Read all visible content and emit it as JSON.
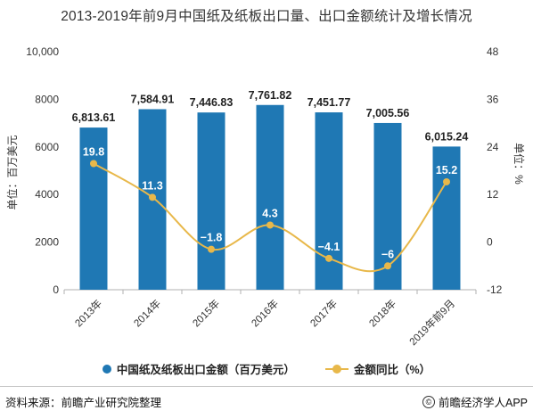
{
  "title": "2013-2019年前9月中国纸及纸板出口量、出口金额统计及增长情况",
  "chart_data": {
    "type": "bar",
    "categories": [
      "2013年",
      "2014年",
      "2015年",
      "2016年",
      "2017年",
      "2018年",
      "2019年前9月"
    ],
    "series": [
      {
        "name": "中国纸及纸板出口金额（百万美元）",
        "type": "bar",
        "axis": "left",
        "values": [
          6813.61,
          7584.91,
          7446.83,
          7761.82,
          7451.77,
          7005.56,
          6015.24
        ],
        "labels": [
          "6,813.61",
          "7,584.91",
          "7,446.83",
          "7,761.82",
          "7,451.77",
          "7,005.56",
          "6,015.24"
        ]
      },
      {
        "name": "金额同比（%）",
        "type": "line",
        "axis": "right",
        "values": [
          19.8,
          11.3,
          -1.8,
          4.3,
          -4.1,
          -6,
          15.2
        ],
        "labels": [
          "19.8",
          "11.3",
          "−1.8",
          "4.3",
          "−4.1",
          "−6",
          "15.2"
        ]
      }
    ],
    "y_left": {
      "label": "单位：百万美元",
      "range": [
        0,
        10000
      ],
      "ticks": [
        0,
        2000,
        4000,
        6000,
        8000,
        10000
      ],
      "tick_labels": [
        "0",
        "2000",
        "4000",
        "6000",
        "8000",
        "10,000"
      ]
    },
    "y_right": {
      "label": "单位：%",
      "range": [
        -12,
        48
      ],
      "ticks": [
        -12,
        0,
        12,
        24,
        36,
        48
      ],
      "tick_labels": [
        "-12",
        "0",
        "12",
        "24",
        "36",
        "48"
      ]
    },
    "grid": false,
    "legend": "bottom-center",
    "colors": {
      "bar": "#1f78b4",
      "line": "#e8b84a",
      "axis": "#b0b0b0"
    }
  },
  "footer": {
    "source": "资料来源：前瞻产业研究院整理",
    "brand": "前瞻经济学人APP",
    "brand_icon": "copyright-icon"
  }
}
